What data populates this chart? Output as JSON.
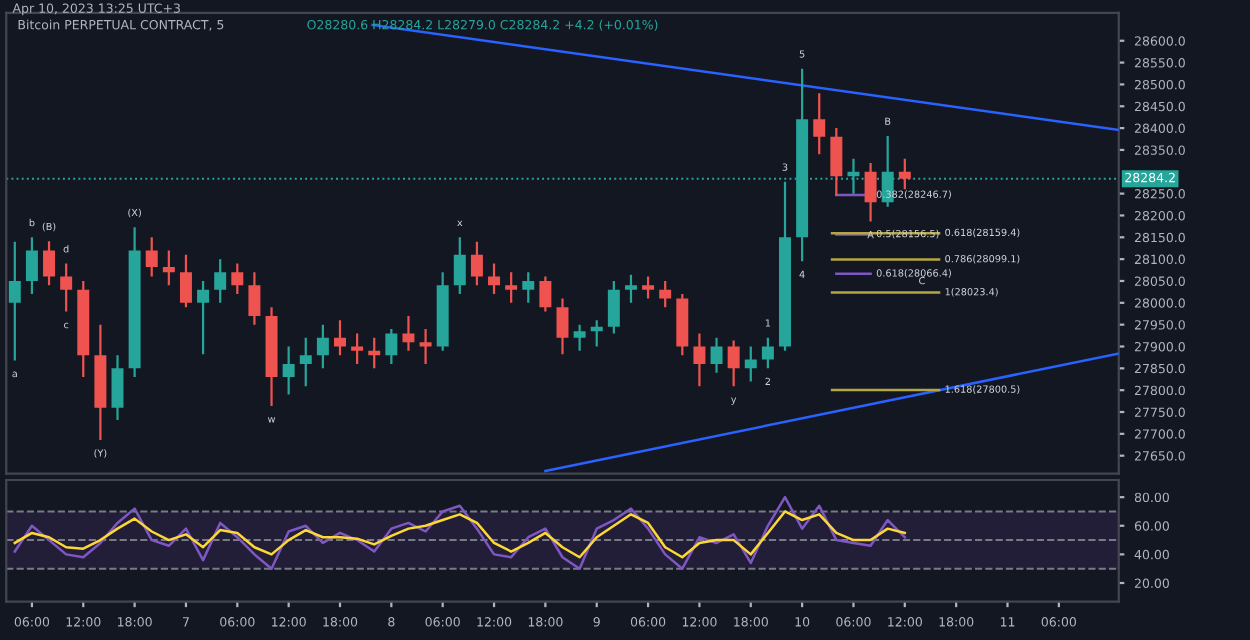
{
  "chart_data": [
    {
      "type": "candlestick",
      "title": "Bitcoin PERPETUAL CONTRACT, 5",
      "subtitle": "O28280.6 H28284.2 L28279.0 C28284.2 +4.2 (+0.01%)",
      "x": [
        "2023-04-06T04:00",
        "2023-04-06T06:00",
        "2023-04-06T08:00",
        "2023-04-06T10:00",
        "2023-04-06T12:00",
        "2023-04-06T14:00",
        "2023-04-06T16:00",
        "2023-04-06T18:00",
        "2023-04-06T20:00",
        "2023-04-06T22:00",
        "2023-04-07T00:00",
        "2023-04-07T02:00",
        "2023-04-07T04:00",
        "2023-04-07T06:00",
        "2023-04-07T08:00",
        "2023-04-07T10:00",
        "2023-04-07T12:00",
        "2023-04-07T14:00",
        "2023-04-07T16:00",
        "2023-04-07T18:00",
        "2023-04-07T20:00",
        "2023-04-07T22:00",
        "2023-04-08T00:00",
        "2023-04-08T02:00",
        "2023-04-08T04:00",
        "2023-04-08T06:00",
        "2023-04-08T08:00",
        "2023-04-08T10:00",
        "2023-04-08T12:00",
        "2023-04-08T14:00",
        "2023-04-08T16:00",
        "2023-04-08T18:00",
        "2023-04-08T20:00",
        "2023-04-08T22:00",
        "2023-04-09T00:00",
        "2023-04-09T02:00",
        "2023-04-09T04:00",
        "2023-04-09T06:00",
        "2023-04-09T08:00",
        "2023-04-09T10:00",
        "2023-04-09T12:00",
        "2023-04-09T14:00",
        "2023-04-09T16:00",
        "2023-04-09T18:00",
        "2023-04-09T20:00",
        "2023-04-09T22:00",
        "2023-04-10T00:00",
        "2023-04-10T02:00",
        "2023-04-10T04:00",
        "2023-04-10T06:00",
        "2023-04-10T08:00",
        "2023-04-10T10:00",
        "2023-04-10T12:00"
      ],
      "ohlc": [
        [
          28000,
          28140,
          27868,
          28050
        ],
        [
          28050,
          28150,
          28020,
          28120
        ],
        [
          28120,
          28141,
          28040,
          28060
        ],
        [
          28060,
          28090,
          27980,
          28030
        ],
        [
          28030,
          28050,
          27830,
          27880
        ],
        [
          27880,
          27950,
          27686,
          27760
        ],
        [
          27760,
          27880,
          27732,
          27850
        ],
        [
          27850,
          28173,
          27830,
          28120
        ],
        [
          28120,
          28150,
          28060,
          28082
        ],
        [
          28082,
          28120,
          28040,
          28070
        ],
        [
          28070,
          28110,
          27990,
          28000
        ],
        [
          28000,
          28050,
          27882,
          28030
        ],
        [
          28030,
          28100,
          28000,
          28070
        ],
        [
          28070,
          28090,
          28020,
          28040
        ],
        [
          28040,
          28070,
          27950,
          27970
        ],
        [
          27970,
          27990,
          27764,
          27830
        ],
        [
          27830,
          27900,
          27790,
          27860
        ],
        [
          27860,
          27920,
          27809,
          27880
        ],
        [
          27880,
          27950,
          27850,
          27920
        ],
        [
          27920,
          27960,
          27880,
          27900
        ],
        [
          27900,
          27930,
          27860,
          27890
        ],
        [
          27890,
          27920,
          27850,
          27880
        ],
        [
          27880,
          27940,
          27860,
          27930
        ],
        [
          27930,
          27970,
          27890,
          27910
        ],
        [
          27910,
          27940,
          27860,
          27900
        ],
        [
          27900,
          28070,
          27890,
          28040
        ],
        [
          28040,
          28150,
          28020,
          28110
        ],
        [
          28110,
          28140,
          28040,
          28060
        ],
        [
          28060,
          28090,
          28020,
          28040
        ],
        [
          28040,
          28070,
          28000,
          28030
        ],
        [
          28030,
          28070,
          28000,
          28050
        ],
        [
          28050,
          28060,
          27980,
          27990
        ],
        [
          27990,
          28010,
          27882,
          27920
        ],
        [
          27920,
          27950,
          27890,
          27935
        ],
        [
          27935,
          27960,
          27900,
          27945
        ],
        [
          27945,
          28050,
          27930,
          28030
        ],
        [
          28030,
          28064,
          28000,
          28040
        ],
        [
          28040,
          28060,
          28010,
          28030
        ],
        [
          28030,
          28050,
          27990,
          28010
        ],
        [
          28010,
          28020,
          27880,
          27900
        ],
        [
          27900,
          27930,
          27809,
          27860
        ],
        [
          27860,
          27920,
          27840,
          27900
        ],
        [
          27900,
          27914,
          27809,
          27850
        ],
        [
          27850,
          27900,
          27820,
          27870
        ],
        [
          27870,
          27920,
          27850,
          27900
        ],
        [
          27900,
          28277,
          27890,
          28150
        ],
        [
          28150,
          28536,
          28095,
          28420
        ],
        [
          28420,
          28480,
          28340,
          28380
        ],
        [
          28380,
          28400,
          28245,
          28290
        ],
        [
          28290,
          28330,
          28250,
          28300
        ],
        [
          28300,
          28320,
          28186,
          28230
        ],
        [
          28230,
          28382,
          28220,
          28300
        ],
        [
          28300,
          28330,
          28260,
          28284
        ]
      ],
      "colors": [
        "#26a69a",
        "#26a69a",
        "#ef5350",
        "#ef5350",
        "#ef5350",
        "#ef5350",
        "#26a69a",
        "#26a69a",
        "#ef5350",
        "#ef5350",
        "#ef5350",
        "#26a69a",
        "#26a69a",
        "#ef5350",
        "#ef5350",
        "#ef5350",
        "#26a69a",
        "#26a69a",
        "#26a69a",
        "#ef5350",
        "#ef5350",
        "#ef5350",
        "#26a69a",
        "#ef5350",
        "#ef5350",
        "#26a69a",
        "#26a69a",
        "#ef5350",
        "#ef5350",
        "#ef5350",
        "#26a69a",
        "#ef5350",
        "#ef5350",
        "#26a69a",
        "#26a69a",
        "#26a69a",
        "#26a69a",
        "#ef5350",
        "#ef5350",
        "#ef5350",
        "#ef5350",
        "#26a69a",
        "#ef5350",
        "#26a69a",
        "#26a69a",
        "#26a69a",
        "#26a69a",
        "#ef5350",
        "#ef5350",
        "#26a69a",
        "#ef5350",
        "#26a69a",
        "#ef5350"
      ],
      "series": [
        {
          "type": "line",
          "color": "#2962ff",
          "x": [
            "2023-04-07T21:48",
            "2023-04-11T13:00"
          ],
          "values": [
            28636,
            28396
          ]
        },
        {
          "type": "line",
          "color": "#2962ff",
          "x": [
            "2023-04-08T18:00",
            "2023-04-11T13:00"
          ],
          "values": [
            27615,
            27884
          ]
        },
        {
          "type": "line",
          "color": "#7e57c2",
          "x": [
            "2023-04-10T04:00",
            "2023-04-10T08:00"
          ],
          "values": [
            28246.7,
            28246.7
          ]
        },
        {
          "type": "line",
          "color": "#7e57c2",
          "x": [
            "2023-04-10T04:00",
            "2023-04-10T08:00"
          ],
          "values": [
            28156.5,
            28156.5
          ]
        },
        {
          "type": "line",
          "color": "#7e57c2",
          "x": [
            "2023-04-10T04:00",
            "2023-04-10T08:00"
          ],
          "values": [
            28066.4,
            28066.4
          ]
        },
        {
          "type": "line",
          "color": "#b5a642",
          "x": [
            "2023-04-10T03:30",
            "2023-04-10T16:00"
          ],
          "values": [
            28159.4,
            28159.4
          ]
        },
        {
          "type": "line",
          "color": "#b5a642",
          "x": [
            "2023-04-10T03:30",
            "2023-04-10T16:00"
          ],
          "values": [
            28099.1,
            28099.1
          ]
        },
        {
          "type": "line",
          "color": "#b5a642",
          "x": [
            "2023-04-10T03:30",
            "2023-04-10T16:00"
          ],
          "values": [
            28023.4,
            28023.4
          ]
        },
        {
          "type": "line",
          "color": "#b5a642",
          "x": [
            "2023-04-10T03:30",
            "2023-04-10T16:00"
          ],
          "values": [
            27800.5,
            27800.5
          ]
        }
      ],
      "xlim": [
        "2023-04-06T03:00",
        "2023-04-11T13:00"
      ],
      "ylim": [
        27609,
        28664
      ],
      "yticks": [
        {
          "value": 27650,
          "label": "27650.0"
        },
        {
          "value": 27700,
          "label": "27700.0"
        },
        {
          "value": 27750,
          "label": "27750.0"
        },
        {
          "value": 27800,
          "label": "27800.0"
        },
        {
          "value": 27850,
          "label": "27850.0"
        },
        {
          "value": 27900,
          "label": "27900.0"
        },
        {
          "value": 27950,
          "label": "27950.0"
        },
        {
          "value": 28000,
          "label": "28000.0"
        },
        {
          "value": 28050,
          "label": "28050.0"
        },
        {
          "value": 28100,
          "label": "28100.0"
        },
        {
          "value": 28150,
          "label": "28150.0"
        },
        {
          "value": 28200,
          "label": "28200.0"
        },
        {
          "value": 28250,
          "label": "28250.0"
        },
        {
          "value": 28350,
          "label": "28350.0"
        },
        {
          "value": 28400,
          "label": "28400.0"
        },
        {
          "value": 28450,
          "label": "28450.0"
        },
        {
          "value": 28500,
          "label": "28500.0"
        },
        {
          "value": 28550,
          "label": "28550.0"
        },
        {
          "value": 28600,
          "label": "28600.0"
        }
      ],
      "tick_labels": "y",
      "ref_lines": [
        {
          "axis": "y",
          "value": 28284.2,
          "label": "28284.2",
          "color": "#26a69a",
          "line_style": "dotted"
        }
      ],
      "annotations": [
        "Apr 10, 2023 13:25 UTC+3",
        {
          "text": "a",
          "x": "2023-04-06T04:00",
          "y": 27868
        },
        {
          "text": "b",
          "x": "2023-04-06T06:00",
          "y": 28150
        },
        {
          "text": "(B)",
          "x": "2023-04-06T08:00",
          "y": 28141
        },
        {
          "text": "c",
          "x": "2023-04-06T10:00",
          "y": 27980
        },
        {
          "text": "d",
          "x": "2023-04-06T10:00",
          "y": 28090
        },
        {
          "text": "(Y)",
          "x": "2023-04-06T14:00",
          "y": 27686
        },
        {
          "text": "(X)",
          "x": "2023-04-06T18:00",
          "y": 28173
        },
        {
          "text": "w",
          "x": "2023-04-07T10:00",
          "y": 27764
        },
        {
          "text": "x",
          "x": "2023-04-08T08:00",
          "y": 28150
        },
        {
          "text": "y",
          "x": "2023-04-09T16:00",
          "y": 27809
        },
        {
          "text": "1",
          "x": "2023-04-09T20:00",
          "y": 27920
        },
        {
          "text": "2",
          "x": "2023-04-09T20:00",
          "y": 27850
        },
        {
          "text": "3",
          "x": "2023-04-09T22:00",
          "y": 28277
        },
        {
          "text": "4",
          "x": "2023-04-10T00:00",
          "y": 28095
        },
        {
          "text": "5",
          "x": "2023-04-10T00:00",
          "y": 28536
        },
        {
          "text": "A",
          "x": "2023-04-10T08:00",
          "y": 28186
        },
        {
          "text": "B",
          "x": "2023-04-10T10:00",
          "y": 28382
        },
        {
          "text": "C",
          "x": "2023-04-10T14:00",
          "y": 28023.4
        },
        {
          "text": "0.382(28246.7)",
          "x": "2023-04-10T08:00",
          "y": 28246.7
        },
        {
          "text": "0.5(28156.5)",
          "x": "2023-04-10T08:00",
          "y": 28156.5
        },
        {
          "text": "0.618(28066.4)",
          "x": "2023-04-10T08:00",
          "y": 28066.4
        },
        {
          "text": "0.618(28159.4)",
          "x": "2023-04-10T16:00",
          "y": 28159.4
        },
        {
          "text": "0.786(28099.1)",
          "x": "2023-04-10T16:00",
          "y": 28099.1
        },
        {
          "text": "1(28023.4)",
          "x": "2023-04-10T16:00",
          "y": 28023.4
        },
        {
          "text": "1.618(27800.5)",
          "x": "2023-04-10T16:00",
          "y": 27800.5
        }
      ]
    },
    {
      "type": "line",
      "x": [
        "2023-04-06T04:00",
        "2023-04-06T06:00",
        "2023-04-06T08:00",
        "2023-04-06T10:00",
        "2023-04-06T12:00",
        "2023-04-06T14:00",
        "2023-04-06T16:00",
        "2023-04-06T18:00",
        "2023-04-06T20:00",
        "2023-04-06T22:00",
        "2023-04-07T00:00",
        "2023-04-07T02:00",
        "2023-04-07T04:00",
        "2023-04-07T06:00",
        "2023-04-07T08:00",
        "2023-04-07T10:00",
        "2023-04-07T12:00",
        "2023-04-07T14:00",
        "2023-04-07T16:00",
        "2023-04-07T18:00",
        "2023-04-07T20:00",
        "2023-04-07T22:00",
        "2023-04-08T00:00",
        "2023-04-08T02:00",
        "2023-04-08T04:00",
        "2023-04-08T06:00",
        "2023-04-08T08:00",
        "2023-04-08T10:00",
        "2023-04-08T12:00",
        "2023-04-08T14:00",
        "2023-04-08T16:00",
        "2023-04-08T18:00",
        "2023-04-08T20:00",
        "2023-04-08T22:00",
        "2023-04-09T00:00",
        "2023-04-09T02:00",
        "2023-04-09T04:00",
        "2023-04-09T06:00",
        "2023-04-09T08:00",
        "2023-04-09T10:00",
        "2023-04-09T12:00",
        "2023-04-09T14:00",
        "2023-04-09T16:00",
        "2023-04-09T18:00",
        "2023-04-09T20:00",
        "2023-04-09T22:00",
        "2023-04-10T00:00",
        "2023-04-10T02:00",
        "2023-04-10T04:00",
        "2023-04-10T06:00",
        "2023-04-10T08:00",
        "2023-04-10T10:00",
        "2023-04-10T12:00"
      ],
      "series": [
        {
          "color": "#7e57c2",
          "values": [
            42,
            60,
            50,
            40,
            38,
            48,
            62,
            72,
            50,
            46,
            58,
            36,
            62,
            52,
            40,
            30,
            56,
            60,
            48,
            55,
            50,
            42,
            58,
            62,
            56,
            70,
            74,
            58,
            40,
            38,
            52,
            58,
            38,
            30,
            58,
            64,
            72,
            58,
            40,
            30,
            52,
            48,
            54,
            34,
            60,
            80,
            58,
            74,
            50,
            48,
            46,
            64,
            52
          ]
        },
        {
          "color": "#fdd835",
          "values": [
            48,
            55,
            52,
            45,
            44,
            50,
            58,
            65,
            56,
            50,
            54,
            45,
            57,
            55,
            45,
            40,
            50,
            57,
            52,
            52,
            51,
            47,
            53,
            58,
            60,
            64,
            68,
            62,
            48,
            42,
            48,
            55,
            45,
            38,
            52,
            60,
            68,
            62,
            45,
            38,
            48,
            50,
            50,
            40,
            55,
            70,
            64,
            68,
            55,
            50,
            50,
            58,
            55
          ]
        }
      ],
      "xlim": [
        "2023-04-06T03:00",
        "2023-04-11T13:00"
      ],
      "ylim": [
        7,
        92
      ],
      "xticks": [
        {
          "value": "2023-04-06T06:00",
          "label": "06:00"
        },
        {
          "value": "2023-04-06T12:00",
          "label": "12:00"
        },
        {
          "value": "2023-04-06T18:00",
          "label": "18:00"
        },
        {
          "value": "2023-04-07T00:00",
          "label": "7"
        },
        {
          "value": "2023-04-07T06:00",
          "label": "06:00"
        },
        {
          "value": "2023-04-07T12:00",
          "label": "12:00"
        },
        {
          "value": "2023-04-07T18:00",
          "label": "18:00"
        },
        {
          "value": "2023-04-08T00:00",
          "label": "8"
        },
        {
          "value": "2023-04-08T06:00",
          "label": "06:00"
        },
        {
          "value": "2023-04-08T12:00",
          "label": "12:00"
        },
        {
          "value": "2023-04-08T18:00",
          "label": "18:00"
        },
        {
          "value": "2023-04-09T00:00",
          "label": "9"
        },
        {
          "value": "2023-04-09T06:00",
          "label": "06:00"
        },
        {
          "value": "2023-04-09T12:00",
          "label": "12:00"
        },
        {
          "value": "2023-04-09T18:00",
          "label": "18:00"
        },
        {
          "value": "2023-04-10T00:00",
          "label": "10"
        },
        {
          "value": "2023-04-10T06:00",
          "label": "06:00"
        },
        {
          "value": "2023-04-10T12:00",
          "label": "12:00"
        },
        {
          "value": "2023-04-10T18:00",
          "label": "18:00"
        },
        {
          "value": "2023-04-11T00:00",
          "label": "11"
        },
        {
          "value": "2023-04-11T06:00",
          "label": "06:00"
        }
      ],
      "yticks": [
        {
          "value": 20,
          "label": "20.00"
        },
        {
          "value": 40,
          "label": "40.00"
        },
        {
          "value": 60,
          "label": "60.00"
        },
        {
          "value": 80,
          "label": "80.00"
        }
      ],
      "bands": [
        {
          "axis": "y",
          "from": 30,
          "to": 70,
          "color": "#221e38"
        }
      ],
      "ref_lines": [
        {
          "axis": "y",
          "value": 30,
          "color": "#787b86",
          "line_style": "dashed"
        },
        {
          "axis": "y",
          "value": 50,
          "color": "#787b86",
          "line_style": "dashed"
        },
        {
          "axis": "y",
          "value": 70,
          "color": "#787b86",
          "line_style": "dashed"
        }
      ]
    }
  ]
}
